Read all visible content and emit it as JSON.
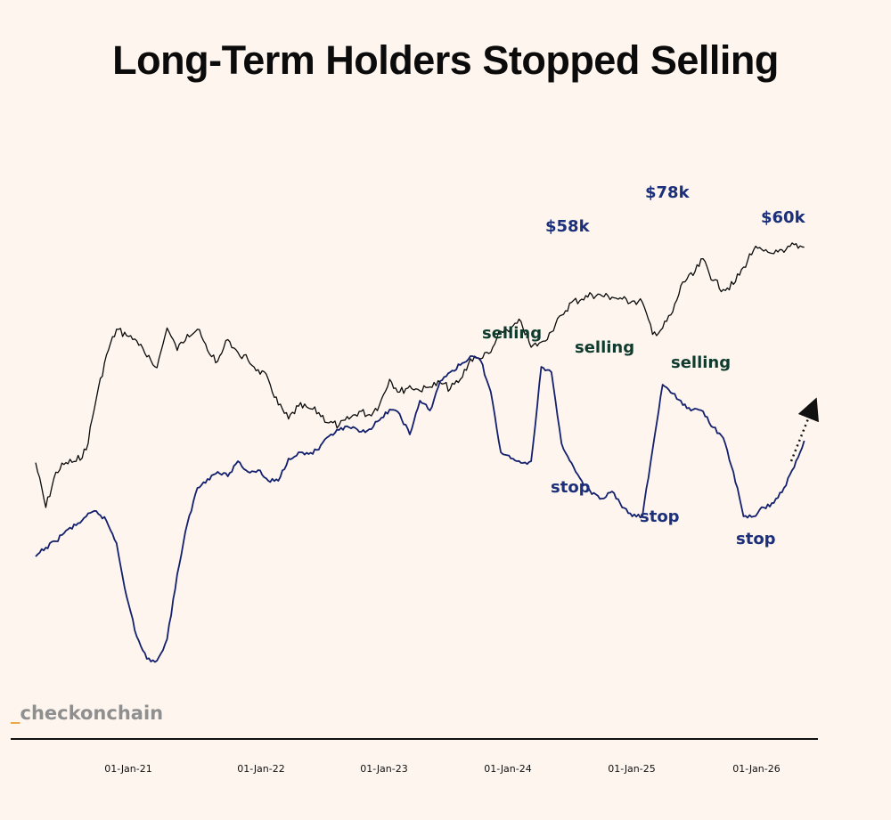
{
  "chart_data": {
    "type": "line",
    "title": "Long-Term Holders Stopped Selling",
    "xlabel": "",
    "ylabel": "",
    "grid": false,
    "x_ticks": [
      "01-Jan-21",
      "01-Jan-22",
      "01-Jan-23",
      "01-Jan-24",
      "01-Jan-25",
      "01-Jan-26"
    ],
    "series": [
      {
        "name": "",
        "role": "price",
        "color": "#0a0a0a",
        "x_start": "2020-06",
        "x_step": "1 month",
        "values": [
          430,
          500,
          445,
          430,
          428,
          410,
          330,
          262,
          222,
          232,
          240,
          265,
          282,
          220,
          255,
          230,
          222,
          255,
          272,
          238,
          258,
          270,
          285,
          300,
          340,
          362,
          342,
          345,
          352,
          368,
          372,
          362,
          350,
          355,
          340,
          300,
          320,
          310,
          318,
          312,
          305,
          315,
          300,
          268,
          268,
          258,
          225,
          220,
          210,
          250,
          242,
          226,
          200,
          180,
          175,
          168,
          170,
          172,
          175,
          178,
          180,
          230,
          220,
          195,
          148,
          138,
          112,
          146,
          160,
          152,
          125,
          98,
          100,
          104,
          102,
          90,
          94
        ],
        "series_value_note": ""
      },
      {
        "name": "",
        "role": "long-term-holder",
        "color": "#13206e",
        "x_start": "2020-06",
        "x_step": "1 month",
        "values": [
          625,
          615,
          608,
          596,
          590,
          580,
          574,
          585,
          610,
          670,
          715,
          740,
          742,
          718,
          645,
          588,
          548,
          538,
          530,
          535,
          518,
          530,
          528,
          540,
          540,
          515,
          508,
          510,
          505,
          490,
          483,
          480,
          485,
          482,
          472,
          460,
          465,
          488,
          450,
          461,
          428,
          418,
          410,
          400,
          405,
          440,
          508,
          515,
          520,
          518,
          412,
          418,
          498,
          520,
          540,
          555,
          560,
          552,
          570,
          580,
          580,
          505,
          432,
          442,
          455,
          460,
          462,
          480,
          492,
          530,
          580,
          580,
          570,
          565,
          548,
          525,
          495
        ]
      }
    ],
    "annotations": {
      "selling_1": "selling",
      "selling_2": "selling",
      "selling_3": "selling",
      "stop_1": "stop",
      "stop_2": "stop",
      "stop_3": "stop",
      "price_58k": "$58k",
      "price_78k": "$78k",
      "price_60k": "$60k"
    }
  },
  "brand": {
    "underscore": "_",
    "name": "checkonchain"
  }
}
